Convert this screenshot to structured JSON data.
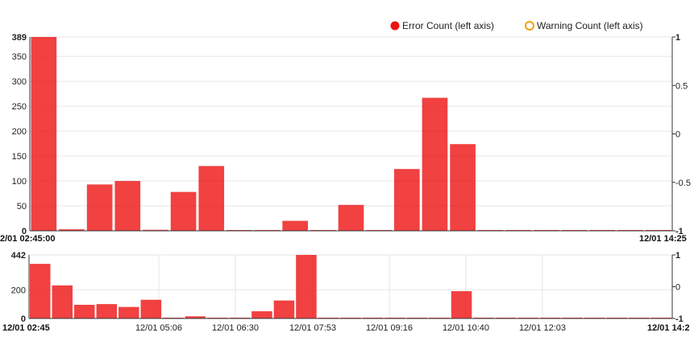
{
  "legend": {
    "error": {
      "label": "Error Count (left axis)",
      "color": "#ee1111"
    },
    "warning": {
      "label": "Warning Count (left axis)",
      "color": "#f0a30a"
    }
  },
  "chart_data": [
    {
      "type": "bar",
      "series": [
        {
          "name": "Error Count (left axis)",
          "values": [
            389,
            3,
            93,
            100,
            2,
            78,
            130,
            1,
            1,
            20,
            1,
            52,
            1,
            124,
            267,
            174,
            1,
            1,
            1,
            1,
            1,
            1,
            1
          ]
        }
      ],
      "y_ticks": [
        0,
        50,
        100,
        150,
        200,
        250,
        300,
        350,
        389
      ],
      "ylim": [
        0,
        389
      ],
      "y_right_ticks": [
        -1,
        -0.5,
        0,
        0.5,
        1
      ],
      "y_right_tick_labels": [
        "-1",
        "-0.5",
        "0",
        "0.5",
        "1"
      ],
      "y_right_range": [
        -1,
        1
      ],
      "x_start_label": "2/01 02:45:00",
      "x_end_label": "12/01 14:25",
      "grid": true
    },
    {
      "type": "bar",
      "series": [
        {
          "name": "Error Count (left axis)",
          "values": [
            380,
            230,
            95,
            100,
            80,
            130,
            2,
            15,
            5,
            1,
            50,
            125,
            442,
            1,
            1,
            1,
            1,
            1,
            1,
            190,
            1,
            1,
            1,
            1,
            1,
            1,
            1,
            1,
            1
          ]
        }
      ],
      "y_ticks": [
        0,
        200,
        442
      ],
      "ylim": [
        0,
        442
      ],
      "y_right_ticks": [
        -1,
        0,
        1
      ],
      "y_right_tick_labels": [
        "-1",
        "0",
        "1"
      ],
      "y_right_range": [
        -1,
        1
      ],
      "x_start_label": "12/01 02:45",
      "x_end_label": "12/01 14:2",
      "x_ticks": [
        "12/01 05:06",
        "12/01 06:30",
        "12/01 07:53",
        "12/01 09:16",
        "12/01 10:40",
        "12/01 12:03"
      ],
      "grid": true
    }
  ]
}
